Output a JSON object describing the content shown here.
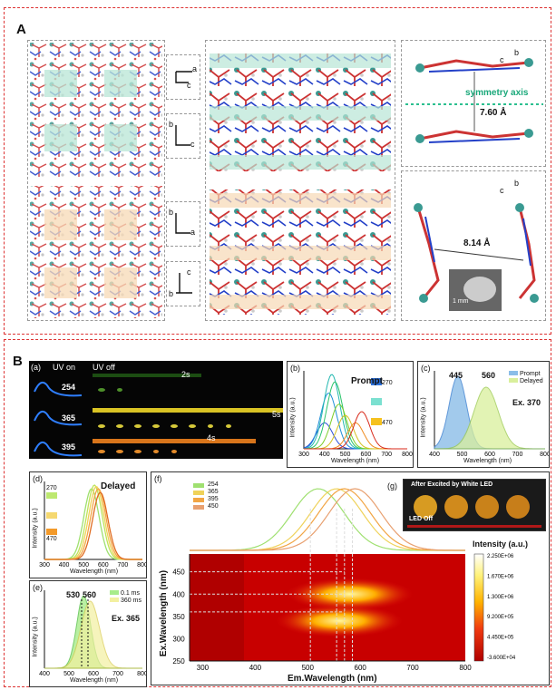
{
  "figure": {
    "panel_a_label": "A",
    "panel_b_label": "B",
    "symmetry_axis": "symmetry axis",
    "dist1": "7.60 Å",
    "dist2": "8.14 Å",
    "scale_bar": "1 mm",
    "axes": {
      "t1": [
        "a",
        "c"
      ],
      "t2": [
        "b",
        "c"
      ],
      "t3": [
        "b",
        "c"
      ],
      "b1": [
        "b",
        "a"
      ],
      "b2": [
        "c",
        "b"
      ],
      "b3": [
        "b",
        "c"
      ]
    }
  },
  "sub_a": {
    "label": "(a)",
    "uv_on": "UV on",
    "uv_off": "UV off",
    "rows": [
      {
        "ex": "254",
        "t": "2s"
      },
      {
        "ex": "365",
        "t": "5s"
      },
      {
        "ex": "395",
        "t": "4s"
      }
    ]
  },
  "sub_b": {
    "label": "(b)",
    "title": "Prompt",
    "legend_top": "270",
    "legend_bottom": "470",
    "ylabel": "Intensity (a.u.)",
    "xlabel": "Wavelength (nm)",
    "xticks": [
      "300",
      "400",
      "500",
      "600",
      "700",
      "800"
    ]
  },
  "sub_c": {
    "label": "(c)",
    "peak1": "445",
    "peak2": "560",
    "legend": [
      "Prompt",
      "Delayed"
    ],
    "ex": "Ex. 370",
    "ylabel": "Intensity (a.u.)",
    "xlabel": "Wavelength (nm)",
    "xticks": [
      "400",
      "500",
      "600",
      "700",
      "800"
    ]
  },
  "sub_d": {
    "label": "(d)",
    "title": "Delayed",
    "legend_top": "270",
    "legend_bottom": "470",
    "ylabel": "Intensity (a.u.)",
    "xlabel": "Wavelength (nm)",
    "xticks": [
      "300",
      "400",
      "500",
      "600",
      "700",
      "800"
    ]
  },
  "sub_e": {
    "label": "(e)",
    "peak1": "530",
    "peak2": "560",
    "legend": [
      "0.1 ms",
      "360 ms"
    ],
    "ex": "Ex. 365",
    "ylabel": "Intensity (a.u.)",
    "xlabel": "Wavelength (nm)",
    "xticks": [
      "400",
      "500",
      "600",
      "700",
      "800"
    ]
  },
  "sub_f": {
    "label": "(f)",
    "legend": [
      "254",
      "365",
      "395",
      "450"
    ],
    "ylabel": "Ex.Wavelength (nm)",
    "xlabel": "Em.Wavelength (nm)",
    "yticks": [
      "450",
      "400",
      "350",
      "300",
      "250"
    ],
    "xticks": [
      "300",
      "400",
      "500",
      "600",
      "700",
      "800"
    ],
    "cbar_title": "Intensity (a.u.)",
    "cbar_ticks": [
      "2.250E+06",
      "1.670E+06",
      "1.300E+06",
      "9.200E+05",
      "4.450E+05",
      "-3.600E+04"
    ]
  },
  "sub_g": {
    "label": "(g)",
    "title": "After Excited by White LED",
    "led_off": "LED Off"
  },
  "chart_data": [
    {
      "type": "line",
      "title": "Prompt",
      "xlabel": "Wavelength (nm)",
      "ylabel": "Intensity (a.u.)",
      "xlim": [
        300,
        800
      ],
      "series": [
        {
          "name": "270",
          "peak": 400,
          "height": 0.35
        },
        {
          "name": "",
          "peak": 420,
          "height": 0.75
        },
        {
          "name": "",
          "peak": 435,
          "height": 1.0
        },
        {
          "name": "",
          "peak": 450,
          "height": 0.9
        },
        {
          "name": "",
          "peak": 470,
          "height": 0.6
        },
        {
          "name": "",
          "peak": 500,
          "height": 0.45
        },
        {
          "name": "",
          "peak": 550,
          "height": 0.35
        },
        {
          "name": "470",
          "peak": 580,
          "height": 0.5
        }
      ]
    },
    {
      "type": "area",
      "title": "",
      "xlabel": "Wavelength (nm)",
      "ylabel": "Intensity (a.u.)",
      "xlim": [
        350,
        800
      ],
      "series": [
        {
          "name": "Prompt",
          "peak": 445,
          "height": 1.0
        },
        {
          "name": "Delayed",
          "peak": 560,
          "height": 0.85
        }
      ]
    },
    {
      "type": "line",
      "title": "Delayed",
      "xlabel": "Wavelength (nm)",
      "ylabel": "Intensity (a.u.)",
      "xlim": [
        300,
        800
      ],
      "series": [
        {
          "name": "270",
          "peak": 540,
          "height": 0.95
        },
        {
          "name": "",
          "peak": 555,
          "height": 1.0
        },
        {
          "name": "",
          "peak": 565,
          "height": 0.98
        },
        {
          "name": "",
          "peak": 575,
          "height": 0.95
        },
        {
          "name": "470",
          "peak": 585,
          "height": 0.9
        }
      ]
    },
    {
      "type": "area",
      "title": "",
      "xlabel": "Wavelength (nm)",
      "ylabel": "Intensity (a.u.)",
      "xlim": [
        350,
        800
      ],
      "series": [
        {
          "name": "0.1 ms",
          "peak": 530,
          "height": 1.0
        },
        {
          "name": "360 ms",
          "peak": 560,
          "height": 0.95
        }
      ]
    },
    {
      "type": "heatmap",
      "xlabel": "Em.Wavelength (nm)",
      "ylabel": "Ex.Wavelength (nm)",
      "xlim": [
        275,
        800
      ],
      "ylim": [
        250,
        490
      ],
      "hotspots": [
        {
          "em": 560,
          "ex": 340
        },
        {
          "em": 580,
          "ex": 400
        }
      ]
    }
  ]
}
